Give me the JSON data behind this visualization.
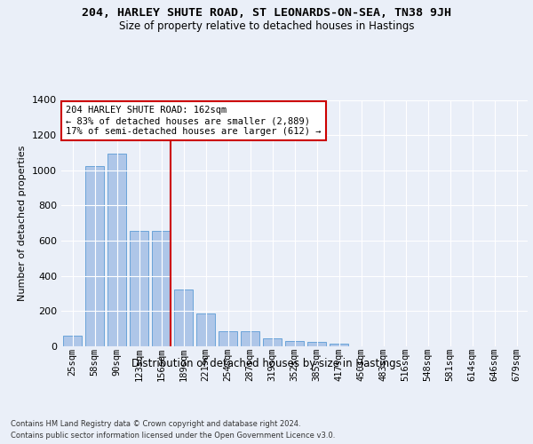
{
  "title_line1": "204, HARLEY SHUTE ROAD, ST LEONARDS-ON-SEA, TN38 9JH",
  "title_line2": "Size of property relative to detached houses in Hastings",
  "xlabel": "Distribution of detached houses by size in Hastings",
  "ylabel": "Number of detached properties",
  "footer_line1": "Contains HM Land Registry data © Crown copyright and database right 2024.",
  "footer_line2": "Contains public sector information licensed under the Open Government Licence v3.0.",
  "bar_labels": [
    "25sqm",
    "58sqm",
    "90sqm",
    "123sqm",
    "156sqm",
    "189sqm",
    "221sqm",
    "254sqm",
    "287sqm",
    "319sqm",
    "352sqm",
    "385sqm",
    "417sqm",
    "450sqm",
    "483sqm",
    "516sqm",
    "548sqm",
    "581sqm",
    "614sqm",
    "646sqm",
    "679sqm"
  ],
  "bar_values": [
    62,
    1022,
    1097,
    655,
    655,
    325,
    185,
    88,
    88,
    46,
    28,
    25,
    15,
    0,
    0,
    0,
    0,
    0,
    0,
    0,
    0
  ],
  "bar_color": "#aec6e8",
  "bar_edge_color": "#5b9bd5",
  "annotation_text": "204 HARLEY SHUTE ROAD: 162sqm\n← 83% of detached houses are smaller (2,889)\n17% of semi-detached houses are larger (612) →",
  "property_line_x": 4.42,
  "ylim": [
    0,
    1400
  ],
  "yticks": [
    0,
    200,
    400,
    600,
    800,
    1000,
    1200,
    1400
  ],
  "bg_color": "#eaeff8",
  "plot_bg_color": "#eaeff8",
  "grid_color": "#ffffff",
  "annotation_box_color": "#ffffff",
  "annotation_box_edge": "#cc0000",
  "vline_color": "#cc0000",
  "title1_fontsize": 9.5,
  "title2_fontsize": 8.5,
  "xlabel_fontsize": 8.5,
  "ylabel_fontsize": 8.0,
  "tick_fontsize": 7.5,
  "footer_fontsize": 6.0
}
